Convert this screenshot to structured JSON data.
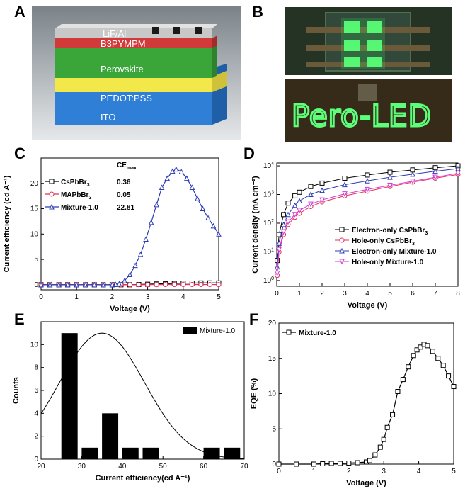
{
  "panels": {
    "a": "A",
    "b": "B",
    "c": "C",
    "d": "D",
    "e": "E",
    "f": "F"
  },
  "device_layers": [
    {
      "label": "LiF/Al",
      "color": "#c8c8c8"
    },
    {
      "label": "B3PYMPM",
      "color": "#d23a3a"
    },
    {
      "label": "Perovskite",
      "color": "#3aa63a"
    },
    {
      "label": "PEDOT:PSS",
      "color": "#f3e84a"
    },
    {
      "label": "ITO",
      "color": "#2f7fd6"
    }
  ],
  "photo_text": "Pero-LED",
  "chart_data": [
    {
      "id": "C",
      "type": "line",
      "xlabel": "Voltage (V)",
      "ylabel": "Current efficiency (cd A⁻¹)",
      "xlim": [
        0,
        5
      ],
      "ylim": [
        -1,
        25
      ],
      "xticks": [
        0,
        1,
        2,
        3,
        4,
        5
      ],
      "yticks": [
        0,
        5,
        10,
        15,
        20
      ],
      "legend_header": "CE",
      "legend_header_sub": "max",
      "series": [
        {
          "name": "CsPbBr",
          "name_sub": "3",
          "ce_max": "0.36",
          "color": "#000000",
          "marker": "square",
          "x": [
            0,
            0.25,
            0.5,
            0.75,
            1,
            1.25,
            1.5,
            1.75,
            2,
            2.25,
            2.5,
            2.75,
            3,
            3.25,
            3.5,
            3.75,
            4,
            4.25,
            4.5,
            4.75,
            5
          ],
          "y": [
            0,
            0,
            0,
            0,
            0,
            0,
            0,
            0,
            0,
            0,
            0,
            0.05,
            0.1,
            0.15,
            0.2,
            0.25,
            0.3,
            0.33,
            0.35,
            0.36,
            0.35
          ]
        },
        {
          "name": "MAPbBr",
          "name_sub": "3",
          "ce_max": "0.05",
          "color": "#e0305a",
          "marker": "circle",
          "x": [
            0,
            0.25,
            0.5,
            0.75,
            1,
            1.25,
            1.5,
            1.75,
            2,
            2.25,
            2.5,
            2.75,
            3,
            3.25,
            3.5,
            3.75,
            4,
            4.25,
            4.5,
            4.75,
            5
          ],
          "y": [
            0,
            0,
            0,
            0,
            0,
            0,
            0,
            0,
            0,
            0,
            0,
            0.01,
            0.02,
            0.03,
            0.04,
            0.05,
            0.05,
            0.05,
            0.04,
            0.04,
            0.03
          ]
        },
        {
          "name": "Mixture-1.0",
          "name_sub": "",
          "ce_max": "22.81",
          "color": "#2b3bb5",
          "marker": "triangle",
          "x": [
            0,
            0.25,
            0.5,
            0.75,
            1,
            1.25,
            1.5,
            1.75,
            2,
            2.1,
            2.2,
            2.35,
            2.5,
            2.65,
            2.8,
            2.95,
            3.1,
            3.25,
            3.4,
            3.55,
            3.7,
            3.8,
            3.95,
            4.1,
            4.25,
            4.4,
            4.55,
            4.7,
            4.85,
            5
          ],
          "y": [
            0,
            0,
            0,
            0,
            0,
            0,
            0,
            0,
            0,
            0.05,
            0.2,
            0.8,
            2.0,
            3.8,
            6.0,
            9.0,
            12.3,
            15.8,
            19.2,
            21.0,
            22.4,
            22.81,
            22.3,
            21.0,
            19.2,
            17.0,
            15.0,
            13.2,
            11.6,
            10.0
          ]
        }
      ]
    },
    {
      "id": "D",
      "type": "line",
      "xlabel": "Voltage (V)",
      "ylabel": "Current density (mA cm⁻²)",
      "xlim": [
        0,
        8
      ],
      "ylim_log10": [
        -0.2,
        4.1
      ],
      "yscale": "log",
      "xticks": [
        0,
        1,
        2,
        3,
        4,
        5,
        6,
        7,
        8
      ],
      "ytick_exponents": [
        0,
        1,
        2,
        3,
        4
      ],
      "legend_placement": "bottom-right",
      "series": [
        {
          "name": "Electron-only CsPbBr",
          "name_sub": "3",
          "color": "#000000",
          "marker": "square",
          "x": [
            0.02,
            0.1,
            0.3,
            0.5,
            0.8,
            1,
            1.5,
            2,
            3,
            4,
            5,
            6,
            7,
            8
          ],
          "y": [
            5,
            40,
            200,
            500,
            900,
            1200,
            1900,
            2500,
            3700,
            4800,
            6000,
            7200,
            8600,
            10000
          ]
        },
        {
          "name": "Hole-only CsPbBr",
          "name_sub": "3",
          "color": "#e0305a",
          "marker": "circle",
          "x": [
            0.02,
            0.1,
            0.3,
            0.5,
            0.8,
            1,
            1.5,
            2,
            3,
            4,
            5,
            6,
            7,
            8
          ],
          "y": [
            1.5,
            10,
            40,
            90,
            160,
            220,
            380,
            550,
            900,
            1300,
            1900,
            2700,
            3700,
            5000
          ]
        },
        {
          "name": "Electron-only Mixture-1.0",
          "name_sub": "",
          "color": "#2b3bb5",
          "marker": "triangle",
          "x": [
            0.02,
            0.1,
            0.3,
            0.5,
            0.8,
            1,
            1.5,
            2,
            3,
            4,
            5,
            6,
            7,
            8
          ],
          "y": [
            3,
            20,
            90,
            200,
            420,
            600,
            1000,
            1400,
            2200,
            3000,
            4000,
            5100,
            6500,
            8000
          ]
        },
        {
          "name": "Hole-only Mixture-1.0",
          "name_sub": "",
          "color": "#d63ad6",
          "marker": "triangle-down",
          "x": [
            0.02,
            0.1,
            0.3,
            0.5,
            0.8,
            1,
            1.5,
            2,
            3,
            4,
            5,
            6,
            7,
            8
          ],
          "y": [
            1.8,
            12,
            50,
            110,
            200,
            280,
            460,
            650,
            1050,
            1500,
            2100,
            2900,
            4000,
            5500
          ]
        }
      ]
    },
    {
      "id": "E",
      "type": "bar",
      "xlabel": "Current efficiency(cd A⁻¹)",
      "ylabel": "Counts",
      "xlim": [
        20,
        70
      ],
      "ylim": [
        0,
        12
      ],
      "xticks": [
        20,
        30,
        40,
        50,
        60,
        70
      ],
      "yticks": [
        0,
        2,
        4,
        6,
        8,
        10
      ],
      "legend_placement": "top-right",
      "series": [
        {
          "name": "Mixture-1.0",
          "color": "#000000",
          "bins": [
            [
              25,
              29,
              11
            ],
            [
              30,
              34,
              1
            ],
            [
              35,
              39,
              4
            ],
            [
              40,
              44,
              1
            ],
            [
              45,
              49,
              1
            ],
            [
              60,
              64,
              1
            ],
            [
              65,
              69,
              1
            ]
          ]
        }
      ],
      "fit_curve": {
        "type": "gaussian",
        "amplitude": 11,
        "mean": 35,
        "sigma": 10.5,
        "color": "#000000"
      }
    },
    {
      "id": "F",
      "type": "line",
      "xlabel": "Voltage (V)",
      "ylabel": "EQE (%)",
      "xlim": [
        0,
        5
      ],
      "ylim": [
        0,
        20
      ],
      "xticks": [
        0,
        1,
        2,
        3,
        4,
        5
      ],
      "yticks": [
        0,
        5,
        10,
        15,
        20
      ],
      "legend_placement": "top-left",
      "series": [
        {
          "name": "Mixture-1.0",
          "name_sub": "",
          "color": "#000000",
          "marker": "square",
          "x": [
            0,
            0.5,
            1,
            1.25,
            1.5,
            1.75,
            2,
            2.25,
            2.5,
            2.6,
            2.75,
            2.9,
            3,
            3.1,
            3.25,
            3.4,
            3.55,
            3.7,
            3.85,
            3.95,
            4.05,
            4.15,
            4.25,
            4.4,
            4.55,
            4.7,
            4.85,
            5
          ],
          "y": [
            0,
            0,
            0,
            0.05,
            0.1,
            0.1,
            0.15,
            0.2,
            0.3,
            0.5,
            1.3,
            2.4,
            3.5,
            5.2,
            7.0,
            10.3,
            12.0,
            13.8,
            15.4,
            16.2,
            16.6,
            17.0,
            16.8,
            16.0,
            15.0,
            14.0,
            12.5,
            11.0
          ]
        }
      ]
    }
  ]
}
